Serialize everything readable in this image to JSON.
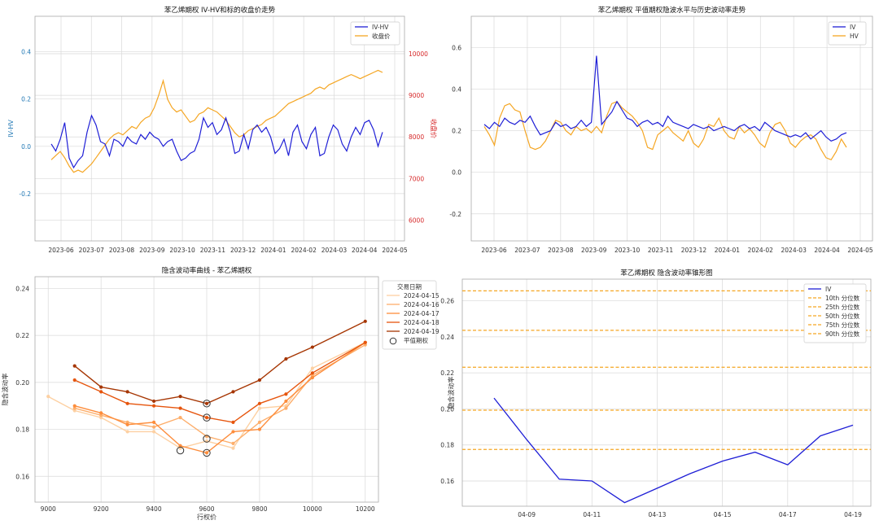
{
  "chart_data": [
    {
      "type": "line",
      "title": "苯乙烯期权 IV-HV和标的收盘价走势",
      "ylabel": "IV-HV",
      "y2label": "收盘价",
      "ylim": [
        -0.4,
        0.55
      ],
      "y2lim": [
        5500,
        10900
      ],
      "yticks": [
        "-0.2",
        "0.0",
        "0.2",
        "0.4"
      ],
      "y2ticks": [
        "6000",
        "7000",
        "8000",
        "9000",
        "10000"
      ],
      "xticks": [
        "2023-06",
        "2023-07",
        "2023-08",
        "2023-09",
        "2023-10",
        "2023-11",
        "2023-12",
        "2024-01",
        "2024-02",
        "2024-03",
        "2024-04",
        "2024-05"
      ],
      "legend": [
        "IV-HV",
        "收盘价"
      ],
      "colors": {
        "ivhv": "#1f1fd6",
        "close": "#f5a623",
        "axis_left": "#1f77b4",
        "axis_right": "#d62728"
      },
      "series": [
        {
          "name": "IV-HV",
          "values": [
            0.01,
            -0.02,
            0.03,
            0.1,
            -0.05,
            -0.09,
            -0.06,
            -0.04,
            0.06,
            0.13,
            0.09,
            0.02,
            0.01,
            -0.04,
            0.03,
            0.02,
            0.0,
            0.04,
            0.02,
            0.01,
            0.05,
            0.03,
            0.06,
            0.04,
            0.03,
            0.0,
            0.02,
            0.03,
            -0.02,
            -0.06,
            -0.05,
            -0.03,
            -0.02,
            0.03,
            0.12,
            0.08,
            0.1,
            0.05,
            0.07,
            0.12,
            0.06,
            -0.03,
            -0.02,
            0.05,
            -0.01,
            0.07,
            0.09,
            0.06,
            0.08,
            0.04,
            -0.03,
            -0.01,
            0.03,
            -0.04,
            0.06,
            0.09,
            0.02,
            -0.01,
            0.05,
            0.08,
            -0.04,
            -0.03,
            0.04,
            0.09,
            0.07,
            0.01,
            -0.02,
            0.04,
            0.08,
            0.05,
            0.1,
            0.11,
            0.07,
            0.0,
            0.06
          ]
        },
        {
          "name": "收盘价",
          "values": [
            7450,
            7550,
            7650,
            7500,
            7300,
            7150,
            7200,
            7150,
            7250,
            7350,
            7500,
            7650,
            7800,
            7950,
            8050,
            8100,
            8050,
            8150,
            8250,
            8200,
            8350,
            8450,
            8500,
            8700,
            9000,
            9350,
            8900,
            8700,
            8600,
            8650,
            8500,
            8350,
            8400,
            8550,
            8600,
            8700,
            8650,
            8600,
            8500,
            8400,
            8250,
            8100,
            8000,
            8050,
            8150,
            8200,
            8250,
            8300,
            8400,
            8450,
            8500,
            8600,
            8700,
            8800,
            8850,
            8900,
            8950,
            9000,
            9050,
            9150,
            9200,
            9150,
            9250,
            9300,
            9350,
            9400,
            9450,
            9500,
            9450,
            9400,
            9450,
            9500,
            9550,
            9600,
            9550
          ]
        }
      ]
    },
    {
      "type": "line",
      "title": "苯乙烯期权 平值期权隐波水平与历史波动率走势",
      "ylim": [
        -0.33,
        0.75
      ],
      "yticks": [
        "-0.2",
        "0.0",
        "0.2",
        "0.4",
        "0.6"
      ],
      "xticks": [
        "2023-06",
        "2023-07",
        "2023-08",
        "2023-09",
        "2023-10",
        "2023-11",
        "2023-12",
        "2024-01",
        "2024-02",
        "2024-03",
        "2024-04",
        "2024-05"
      ],
      "legend": [
        "IV",
        "HV"
      ],
      "colors": {
        "iv": "#1f1fd6",
        "hv": "#f5a623"
      },
      "series": [
        {
          "name": "IV",
          "values": [
            0.23,
            0.21,
            0.24,
            0.22,
            0.26,
            0.24,
            0.23,
            0.25,
            0.24,
            0.27,
            0.22,
            0.18,
            0.19,
            0.2,
            0.24,
            0.22,
            0.23,
            0.21,
            0.22,
            0.25,
            0.22,
            0.24,
            0.56,
            0.23,
            0.26,
            0.29,
            0.34,
            0.3,
            0.26,
            0.25,
            0.22,
            0.24,
            0.25,
            0.23,
            0.24,
            0.22,
            0.27,
            0.24,
            0.23,
            0.22,
            0.21,
            0.23,
            0.22,
            0.21,
            0.22,
            0.2,
            0.21,
            0.22,
            0.21,
            0.2,
            0.22,
            0.23,
            0.21,
            0.22,
            0.2,
            0.24,
            0.22,
            0.2,
            0.19,
            0.18,
            0.17,
            0.18,
            0.17,
            0.19,
            0.16,
            0.18,
            0.2,
            0.17,
            0.15,
            0.16,
            0.18,
            0.19
          ]
        },
        {
          "name": "HV",
          "values": [
            0.22,
            0.18,
            0.13,
            0.26,
            0.32,
            0.33,
            0.3,
            0.29,
            0.2,
            0.12,
            0.11,
            0.12,
            0.15,
            0.2,
            0.25,
            0.24,
            0.2,
            0.18,
            0.22,
            0.2,
            0.21,
            0.19,
            0.22,
            0.19,
            0.27,
            0.33,
            0.34,
            0.31,
            0.29,
            0.27,
            0.24,
            0.2,
            0.12,
            0.11,
            0.18,
            0.2,
            0.22,
            0.19,
            0.17,
            0.15,
            0.2,
            0.14,
            0.12,
            0.16,
            0.23,
            0.22,
            0.26,
            0.2,
            0.17,
            0.16,
            0.22,
            0.19,
            0.21,
            0.18,
            0.14,
            0.12,
            0.19,
            0.23,
            0.24,
            0.2,
            0.14,
            0.12,
            0.15,
            0.17,
            0.18,
            0.16,
            0.11,
            0.07,
            0.06,
            0.1,
            0.16,
            0.12
          ]
        }
      ]
    },
    {
      "type": "line",
      "title": "隐含波动率曲线 - 苯乙烯期权",
      "xlabel": "行权价",
      "ylabel": "隐含波动率",
      "xlim": [
        8950,
        10250
      ],
      "ylim": [
        0.149,
        0.245
      ],
      "xticks": [
        9000,
        9200,
        9400,
        9600,
        9800,
        10000,
        10200
      ],
      "yticks": [
        "0.16",
        "0.18",
        "0.20",
        "0.22",
        "0.24"
      ],
      "legend_title": "交易日期",
      "atm_label": "平值期权",
      "series": [
        {
          "name": "2024-04-15",
          "color": "#fdd0a2",
          "points": [
            [
              9000,
              0.194
            ],
            [
              9100,
              0.188
            ],
            [
              9200,
              0.185
            ],
            [
              9300,
              0.179
            ],
            [
              9400,
              0.179
            ],
            [
              9500,
              0.172
            ],
            [
              9600,
              0.175
            ],
            [
              9700,
              0.172
            ],
            [
              9800,
              0.189
            ],
            [
              9900,
              0.19
            ],
            [
              10000,
              0.206
            ],
            [
              10200,
              0.217
            ]
          ]
        },
        {
          "name": "2024-04-16",
          "color": "#fdae6b",
          "points": [
            [
              9100,
              0.189
            ],
            [
              9200,
              0.186
            ],
            [
              9300,
              0.183
            ],
            [
              9400,
              0.181
            ],
            [
              9500,
              0.185
            ],
            [
              9600,
              0.177
            ],
            [
              9700,
              0.174
            ],
            [
              9800,
              0.183
            ],
            [
              9900,
              0.189
            ],
            [
              10000,
              0.203
            ],
            [
              10200,
              0.216
            ]
          ]
        },
        {
          "name": "2024-04-17",
          "color": "#fd8d3c",
          "points": [
            [
              9100,
              0.19
            ],
            [
              9200,
              0.187
            ],
            [
              9300,
              0.182
            ],
            [
              9400,
              0.183
            ],
            [
              9500,
              0.173
            ],
            [
              9600,
              0.17
            ],
            [
              9700,
              0.179
            ],
            [
              9800,
              0.18
            ],
            [
              9900,
              0.192
            ],
            [
              10000,
              0.202
            ],
            [
              10200,
              0.217
            ]
          ]
        },
        {
          "name": "2024-04-18",
          "color": "#e6550d",
          "points": [
            [
              9100,
              0.201
            ],
            [
              9200,
              0.196
            ],
            [
              9300,
              0.191
            ],
            [
              9400,
              0.19
            ],
            [
              9500,
              0.189
            ],
            [
              9600,
              0.185
            ],
            [
              9700,
              0.183
            ],
            [
              9800,
              0.191
            ],
            [
              9900,
              0.195
            ],
            [
              10000,
              0.204
            ],
            [
              10200,
              0.217
            ]
          ]
        },
        {
          "name": "2024-04-19",
          "color": "#a63603",
          "points": [
            [
              9100,
              0.207
            ],
            [
              9200,
              0.198
            ],
            [
              9300,
              0.196
            ],
            [
              9400,
              0.192
            ],
            [
              9500,
              0.194
            ],
            [
              9600,
              0.191
            ],
            [
              9700,
              0.196
            ],
            [
              9800,
              0.201
            ],
            [
              9900,
              0.21
            ],
            [
              10000,
              0.215
            ],
            [
              10200,
              0.226
            ]
          ]
        }
      ],
      "atm_points": [
        [
          9500,
          0.171
        ],
        [
          9600,
          0.176
        ],
        [
          9600,
          0.17
        ],
        [
          9600,
          0.185
        ],
        [
          9600,
          0.191
        ]
      ]
    },
    {
      "type": "line",
      "title": "苯乙烯期权 隐含波动率锥形图",
      "ylabel": "隐含波动率",
      "ylim": [
        0.146,
        0.272
      ],
      "yticks": [
        "0.16",
        "0.18",
        "0.20",
        "0.22",
        "0.24",
        "0.26"
      ],
      "xticks": [
        "04-09",
        "04-11",
        "04-13",
        "04-15",
        "04-17",
        "04-19"
      ],
      "x": [
        0,
        1,
        2,
        3,
        4,
        5,
        6,
        7,
        8,
        9,
        10,
        11
      ],
      "values": [
        0.206,
        0.183,
        0.161,
        0.16,
        0.148,
        0.156,
        0.164,
        0.171,
        0.176,
        0.169,
        0.185,
        0.191
      ],
      "series_name": "IV",
      "percentiles": [
        {
          "label": "10th 分位数",
          "value": 0.1775
        },
        {
          "label": "25th 分位数",
          "value": 0.1993
        },
        {
          "label": "50th 分位数",
          "value": 0.2231
        },
        {
          "label": "75th 分位数",
          "value": 0.2436
        },
        {
          "label": "90th 分位数",
          "value": 0.2655
        }
      ],
      "colors": {
        "iv": "#1f1fd6",
        "pct": "#f5a623"
      }
    }
  ]
}
